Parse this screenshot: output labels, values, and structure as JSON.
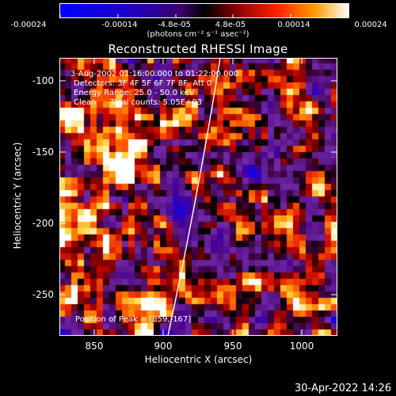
{
  "colorbar": {
    "ticks": [
      "-0.00024",
      "-0.00014",
      "-4.8e-05",
      "4.8e-05",
      "0.00014",
      "0.00024"
    ],
    "unit": "(photons cm⁻² s⁻¹ asec⁻²)"
  },
  "title": "Reconstructed RHESSI Image",
  "info": {
    "line1": "3-Aug-2002 01:16:00.000 to 01:22:00.000",
    "line2": "Detectors: 3F 4F 5F 6F 7F 8F, Att 0",
    "line3": "Energy Range: 25.0 - 50.0 keV",
    "line4_method": "Clean",
    "line4_counts": "Total counts: 5.05E+03",
    "peak": "Position of Peak = [859,-167]"
  },
  "axes": {
    "xlabel": "Heliocentric X (arcsec)",
    "ylabel": "Heliocentric Y (arcsec)",
    "xticks": [
      "850",
      "900",
      "950",
      "1000"
    ],
    "yticks": [
      "-100",
      "-150",
      "-200",
      "-250"
    ]
  },
  "timestamp": "30-Apr-2022 14:26",
  "colors": {
    "bg": "#000000",
    "limb": "#ffffff"
  }
}
